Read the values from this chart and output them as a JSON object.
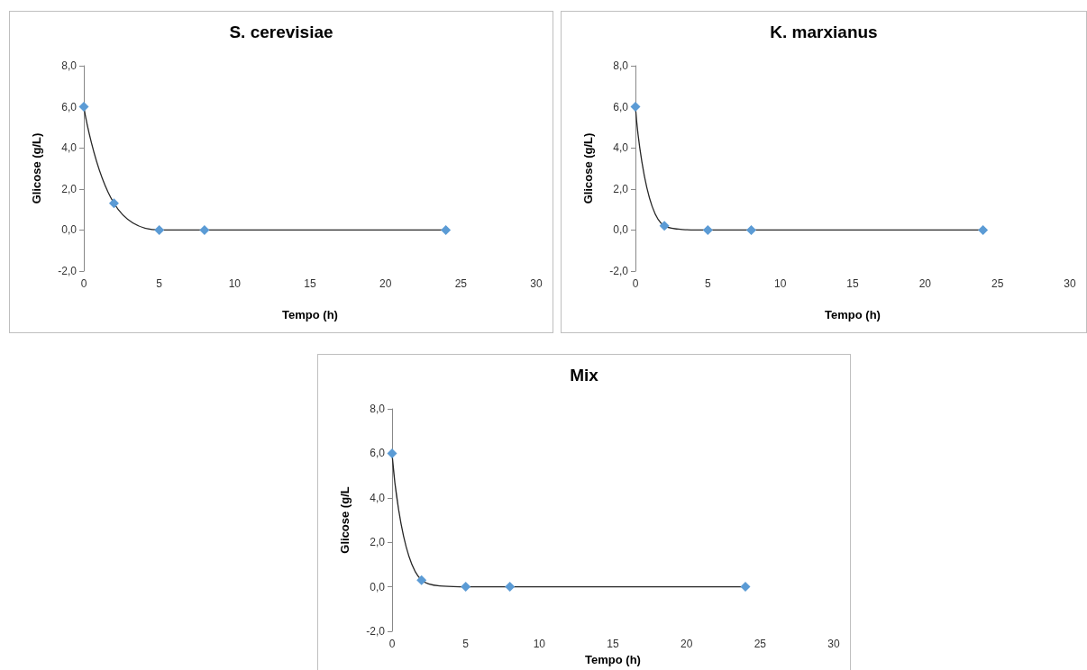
{
  "chart_data": [
    {
      "type": "line",
      "title": "S. cerevisiae",
      "xlabel": "Tempo (h)",
      "ylabel": "Glicose (g/L)",
      "x": [
        0,
        2,
        5,
        8,
        24
      ],
      "series": [
        {
          "color": "#5b9bd5",
          "values": [
            6.0,
            1.3,
            0.0,
            0.0,
            0.0
          ]
        }
      ],
      "xlim": [
        0,
        30
      ],
      "xticks": [
        0,
        5,
        10,
        15,
        20,
        25,
        30
      ],
      "ylim": [
        -2,
        8
      ],
      "yticks": [
        {
          "value": -2,
          "label": "-2,0"
        },
        {
          "value": 0,
          "label": "0,0"
        },
        {
          "value": 2,
          "label": "2,0"
        },
        {
          "value": 4,
          "label": "4,0"
        },
        {
          "value": 6,
          "label": "6,0"
        },
        {
          "value": 8,
          "label": "8,0"
        }
      ],
      "grid": false,
      "marker": "diamond",
      "line_style": "solid"
    },
    {
      "type": "line",
      "title": "K. marxianus",
      "xlabel": "Tempo (h)",
      "ylabel": "Glicose (g/L)",
      "x": [
        0,
        2,
        5,
        8,
        24
      ],
      "series": [
        {
          "color": "#5b9bd5",
          "values": [
            6.0,
            0.2,
            0.0,
            0.0,
            0.0
          ]
        }
      ],
      "xlim": [
        0,
        30
      ],
      "xticks": [
        0,
        5,
        10,
        15,
        20,
        25,
        30
      ],
      "ylim": [
        -2,
        8
      ],
      "yticks": [
        {
          "value": -2,
          "label": "-2,0"
        },
        {
          "value": 0,
          "label": "0,0"
        },
        {
          "value": 2,
          "label": "2,0"
        },
        {
          "value": 4,
          "label": "4,0"
        },
        {
          "value": 6,
          "label": "6,0"
        },
        {
          "value": 8,
          "label": "8,0"
        }
      ],
      "grid": false,
      "marker": "diamond",
      "line_style": "solid"
    },
    {
      "type": "line",
      "title": "Mix",
      "xlabel": "Tempo (h)",
      "ylabel": "Glicose (g/L",
      "x": [
        0,
        2,
        5,
        8,
        24
      ],
      "series": [
        {
          "color": "#5b9bd5",
          "values": [
            6.0,
            0.3,
            0.0,
            0.0,
            0.0
          ]
        }
      ],
      "xlim": [
        0,
        30
      ],
      "xticks": [
        0,
        5,
        10,
        15,
        20,
        25,
        30
      ],
      "ylim": [
        -2,
        8
      ],
      "yticks": [
        {
          "value": -2,
          "label": "-2,0"
        },
        {
          "value": 0,
          "label": "0,0"
        },
        {
          "value": 2,
          "label": "2,0"
        },
        {
          "value": 4,
          "label": "4,0"
        },
        {
          "value": 6,
          "label": "6,0"
        },
        {
          "value": 8,
          "label": "8,0"
        }
      ],
      "grid": false,
      "marker": "diamond",
      "line_style": "solid"
    }
  ]
}
